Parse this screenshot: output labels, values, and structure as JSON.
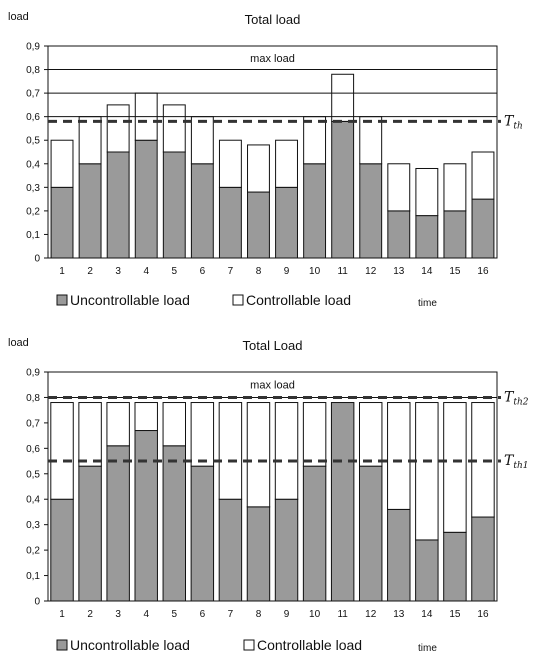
{
  "chart_data": [
    {
      "type": "bar",
      "stacked": true,
      "title": "Total load",
      "ylabel": "load",
      "xlabel": "time",
      "ylim": [
        0,
        0.9
      ],
      "yticks": [
        "0",
        "0,1",
        "0,2",
        "0,3",
        "0,4",
        "0,5",
        "0,6",
        "0,7",
        "0,8",
        "0,9"
      ],
      "categories": [
        "1",
        "2",
        "3",
        "4",
        "5",
        "6",
        "7",
        "8",
        "9",
        "10",
        "11",
        "12",
        "13",
        "14",
        "15",
        "16"
      ],
      "series": [
        {
          "name": "Uncontrollable load",
          "color": "#9a9a9a",
          "values": [
            0.3,
            0.4,
            0.45,
            0.5,
            0.45,
            0.4,
            0.3,
            0.28,
            0.3,
            0.4,
            0.58,
            0.4,
            0.2,
            0.18,
            0.2,
            0.25
          ]
        },
        {
          "name": "Controllable load",
          "color": "#ffffff",
          "values": [
            0.2,
            0.2,
            0.2,
            0.2,
            0.2,
            0.2,
            0.2,
            0.2,
            0.2,
            0.2,
            0.2,
            0.2,
            0.2,
            0.2,
            0.2,
            0.2
          ]
        }
      ],
      "annotations": {
        "max_load_label": "max load",
        "max_load_value": 0.9,
        "thresholds": [
          {
            "value": 0.58,
            "label": "T",
            "sub": "th"
          }
        ]
      },
      "hlines": [
        0.6,
        0.7,
        0.8
      ]
    },
    {
      "type": "bar",
      "stacked": true,
      "title": "Total Load",
      "ylabel": "load",
      "xlabel": "time",
      "ylim": [
        0,
        0.9
      ],
      "yticks": [
        "0",
        "0,1",
        "0,2",
        "0,3",
        "0,4",
        "0,5",
        "0,6",
        "0,7",
        "0,8",
        "0,9"
      ],
      "categories": [
        "1",
        "2",
        "3",
        "4",
        "5",
        "6",
        "7",
        "8",
        "9",
        "10",
        "11",
        "12",
        "13",
        "14",
        "15",
        "16"
      ],
      "series": [
        {
          "name": "Uncontrollable load",
          "color": "#9a9a9a",
          "values": [
            0.4,
            0.53,
            0.61,
            0.67,
            0.61,
            0.53,
            0.4,
            0.37,
            0.4,
            0.53,
            0.78,
            0.53,
            0.36,
            0.24,
            0.27,
            0.33
          ]
        },
        {
          "name": "Controllable load",
          "color": "#ffffff",
          "values": [
            0.38,
            0.25,
            0.17,
            0.11,
            0.17,
            0.25,
            0.38,
            0.41,
            0.38,
            0.25,
            0.0,
            0.25,
            0.42,
            0.54,
            0.51,
            0.45
          ]
        }
      ],
      "annotations": {
        "max_load_label": "max load",
        "max_load_value": 0.9,
        "thresholds": [
          {
            "value": 0.8,
            "label": "T",
            "sub": "th2"
          },
          {
            "value": 0.55,
            "label": "T",
            "sub": "th1"
          }
        ]
      },
      "hlines": [
        0.8
      ]
    }
  ]
}
